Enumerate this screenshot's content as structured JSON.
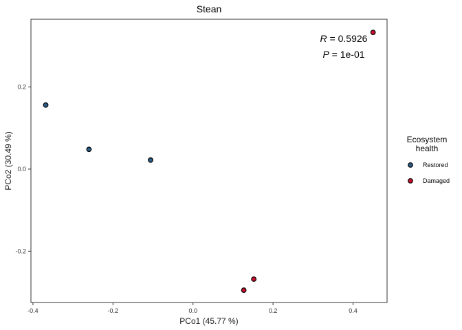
{
  "chart_data": {
    "type": "scatter",
    "title": "Stean",
    "xlabel": "PCo1 (45.77 %)",
    "ylabel": "PCo2 (30.49 %)",
    "xlim": [
      -0.405,
      0.485
    ],
    "ylim": [
      -0.325,
      0.365
    ],
    "xticks": [
      -0.4,
      -0.2,
      0.0,
      0.2,
      0.4
    ],
    "xtick_labels": [
      "-0.4",
      "-0.2",
      "0.0",
      "0.2",
      "0.4"
    ],
    "yticks": [
      -0.2,
      0.0,
      0.2
    ],
    "ytick_labels": [
      "-0.2",
      "0.0",
      "0.2"
    ],
    "grid": false,
    "legend": {
      "title_lines": [
        "Ecosystem",
        "health"
      ],
      "position": "right"
    },
    "series": [
      {
        "name": "Restored",
        "color": "#2b5d8a",
        "points": [
          {
            "x": -0.368,
            "y": 0.156
          },
          {
            "x": -0.26,
            "y": 0.048
          },
          {
            "x": -0.106,
            "y": 0.022
          }
        ]
      },
      {
        "name": "Damaged",
        "color": "#c8102e",
        "points": [
          {
            "x": 0.45,
            "y": 0.333
          },
          {
            "x": 0.152,
            "y": -0.268
          },
          {
            "x": 0.127,
            "y": -0.295
          }
        ]
      }
    ],
    "annotations": {
      "r_symbol": "R",
      "r_value": " = 0.5926",
      "p_symbol": "P",
      "p_value": " = 1e-01"
    }
  }
}
